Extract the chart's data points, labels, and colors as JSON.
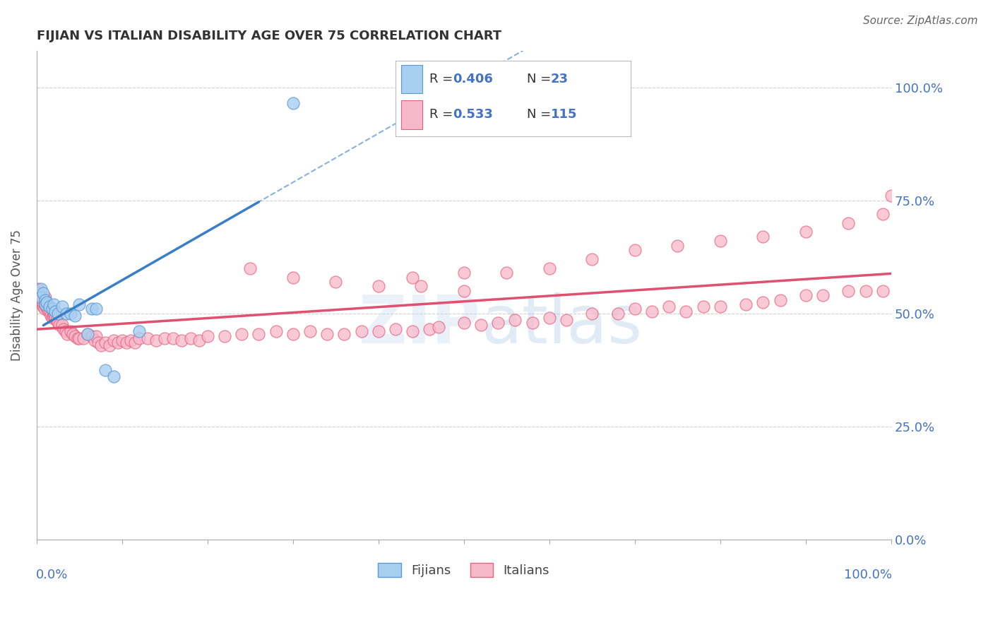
{
  "title": "FIJIAN VS ITALIAN DISABILITY AGE OVER 75 CORRELATION CHART",
  "source": "Source: ZipAtlas.com",
  "ylabel": "Disability Age Over 75",
  "fijian_color": "#a8cef0",
  "italian_color": "#f7b8cc",
  "fijian_edge_color": "#5b9bd5",
  "italian_edge_color": "#e8607a",
  "fijian_line_color": "#3a7ec8",
  "italian_line_color": "#e05070",
  "watermark": "ZIPatlas",
  "fijian_R": "0.406",
  "fijian_N": "23",
  "italian_R": "0.533",
  "italian_N": "115",
  "fijian_x": [
    0.005,
    0.005,
    0.008,
    0.01,
    0.01,
    0.012,
    0.015,
    0.018,
    0.02,
    0.022,
    0.025,
    0.03,
    0.035,
    0.04,
    0.045,
    0.05,
    0.06,
    0.065,
    0.07,
    0.08,
    0.09,
    0.12,
    0.3
  ],
  "fijian_y": [
    0.555,
    0.535,
    0.545,
    0.53,
    0.52,
    0.525,
    0.515,
    0.51,
    0.52,
    0.505,
    0.5,
    0.515,
    0.5,
    0.5,
    0.495,
    0.52,
    0.455,
    0.51,
    0.51,
    0.375,
    0.36,
    0.46,
    0.965
  ],
  "italian_x": [
    0.002,
    0.003,
    0.004,
    0.005,
    0.006,
    0.007,
    0.008,
    0.008,
    0.009,
    0.01,
    0.01,
    0.011,
    0.012,
    0.013,
    0.014,
    0.015,
    0.016,
    0.017,
    0.018,
    0.019,
    0.02,
    0.021,
    0.022,
    0.023,
    0.025,
    0.027,
    0.03,
    0.032,
    0.034,
    0.036,
    0.04,
    0.042,
    0.045,
    0.048,
    0.05,
    0.055,
    0.06,
    0.065,
    0.068,
    0.07,
    0.072,
    0.075,
    0.08,
    0.085,
    0.09,
    0.095,
    0.1,
    0.105,
    0.11,
    0.115,
    0.12,
    0.13,
    0.14,
    0.15,
    0.16,
    0.17,
    0.18,
    0.19,
    0.2,
    0.22,
    0.24,
    0.26,
    0.28,
    0.3,
    0.32,
    0.34,
    0.36,
    0.38,
    0.4,
    0.42,
    0.44,
    0.46,
    0.47,
    0.5,
    0.52,
    0.54,
    0.56,
    0.58,
    0.6,
    0.62,
    0.65,
    0.68,
    0.7,
    0.72,
    0.74,
    0.76,
    0.78,
    0.8,
    0.83,
    0.85,
    0.87,
    0.9,
    0.92,
    0.95,
    0.97,
    0.99,
    0.44,
    0.5,
    0.55,
    0.6,
    0.65,
    0.7,
    0.75,
    0.8,
    0.85,
    0.9,
    0.95,
    0.99,
    1.0,
    0.25,
    0.3,
    0.35,
    0.4,
    0.45,
    0.5,
    0.55
  ],
  "italian_y": [
    0.555,
    0.545,
    0.535,
    0.53,
    0.525,
    0.52,
    0.515,
    0.525,
    0.51,
    0.535,
    0.525,
    0.515,
    0.52,
    0.51,
    0.505,
    0.515,
    0.505,
    0.495,
    0.49,
    0.495,
    0.5,
    0.495,
    0.49,
    0.485,
    0.48,
    0.475,
    0.475,
    0.465,
    0.46,
    0.455,
    0.46,
    0.455,
    0.45,
    0.445,
    0.445,
    0.445,
    0.455,
    0.45,
    0.44,
    0.45,
    0.435,
    0.43,
    0.435,
    0.43,
    0.44,
    0.435,
    0.44,
    0.435,
    0.44,
    0.435,
    0.445,
    0.445,
    0.44,
    0.445,
    0.445,
    0.44,
    0.445,
    0.44,
    0.45,
    0.45,
    0.455,
    0.455,
    0.46,
    0.455,
    0.46,
    0.455,
    0.455,
    0.46,
    0.46,
    0.465,
    0.46,
    0.465,
    0.47,
    0.48,
    0.475,
    0.48,
    0.485,
    0.48,
    0.49,
    0.485,
    0.5,
    0.5,
    0.51,
    0.505,
    0.515,
    0.505,
    0.515,
    0.515,
    0.52,
    0.525,
    0.53,
    0.54,
    0.54,
    0.55,
    0.55,
    0.55,
    0.58,
    0.59,
    0.59,
    0.6,
    0.62,
    0.64,
    0.65,
    0.66,
    0.67,
    0.68,
    0.7,
    0.72,
    0.76,
    0.6,
    0.58,
    0.57,
    0.56,
    0.56,
    0.55,
    0.57
  ],
  "xlim": [
    0.0,
    1.0
  ],
  "ylim_low": 0.0,
  "ylim_high": 1.08,
  "yticks": [
    0.0,
    0.25,
    0.5,
    0.75,
    1.0
  ],
  "ytick_pct": [
    "0.0%",
    "25.0%",
    "50.0%",
    "75.0%",
    "100.0%"
  ],
  "label_color": "#4472c4",
  "title_color": "#333333",
  "grid_color": "#d0d0d0",
  "spine_color": "#aaaaaa"
}
